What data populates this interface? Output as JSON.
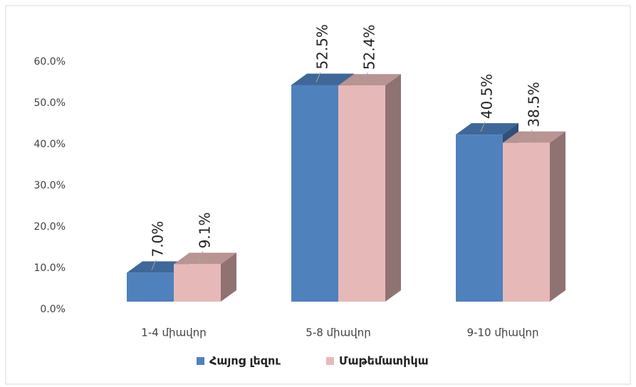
{
  "chart_data": {
    "type": "bar3d",
    "categories": [
      "1-4 միավոր",
      "5-8 միավոր",
      "9-10 միավոր"
    ],
    "series": [
      {
        "name": "Հայոց լեզու",
        "color": "#4f81bd",
        "values": [
          7.0,
          52.5,
          40.5
        ],
        "value_labels": [
          "7.0%",
          "52.5%",
          "40.5%"
        ]
      },
      {
        "name": "Մաթեմատիկա",
        "color": "#e6b9b8",
        "values": [
          9.1,
          52.4,
          38.5
        ],
        "value_labels": [
          "9.1%",
          "52.4%",
          "38.5%"
        ]
      }
    ],
    "ylim": [
      0,
      60
    ],
    "yticks": [
      {
        "value": 0,
        "label": "0.0%"
      },
      {
        "value": 10,
        "label": "10.0%"
      },
      {
        "value": 20,
        "label": "20.0%"
      },
      {
        "value": 30,
        "label": "30.0%"
      },
      {
        "value": 40,
        "label": "40.0%"
      },
      {
        "value": 50,
        "label": "50.0%"
      },
      {
        "value": 60,
        "label": "60.0%"
      }
    ],
    "legend": "bottom"
  }
}
